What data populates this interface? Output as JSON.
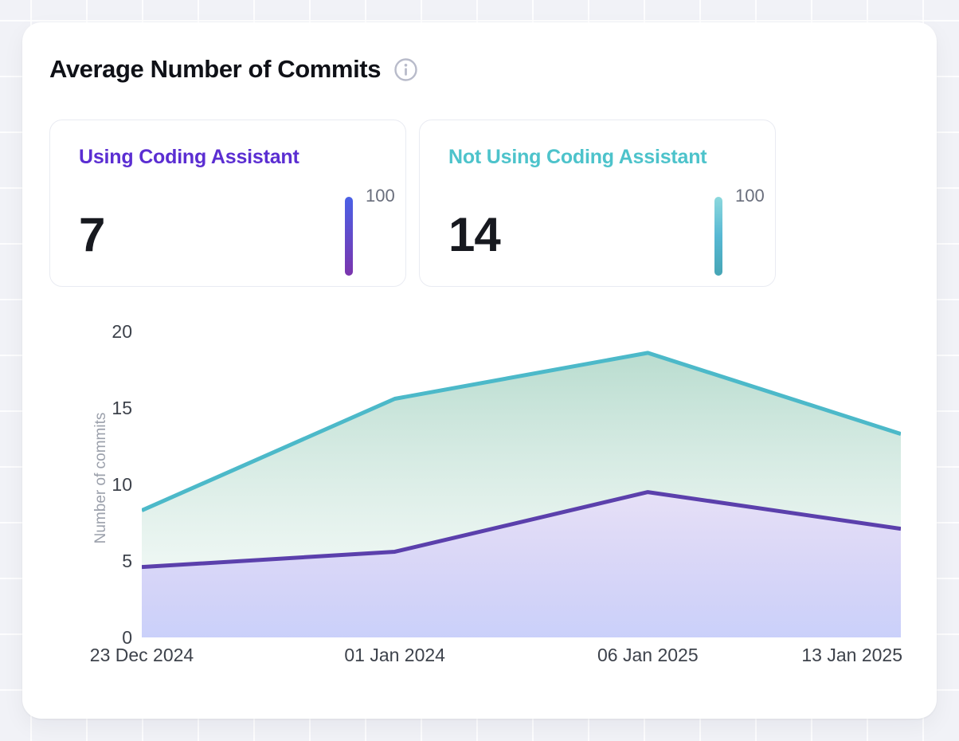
{
  "header": {
    "title": "Average Number of Commits",
    "info_icon": "info-circle"
  },
  "stat_cards": [
    {
      "label": "Using Coding Assistant",
      "value": "7",
      "gauge_label": "100",
      "accent": "#5b2ed2",
      "bar_gradient": [
        "#4a61e6",
        "#7b35ad"
      ]
    },
    {
      "label": "Not Using Coding Assistant",
      "value": "14",
      "gauge_label": "100",
      "accent": "#4dc3cb",
      "bar_gradient": [
        "#8cd8dd",
        "#57b8d3",
        "#46a5b5"
      ]
    }
  ],
  "chart_data": {
    "type": "area",
    "x": [
      "23 Dec 2024",
      "01 Jan 2024",
      "06 Jan 2025",
      "13 Jan 2025"
    ],
    "series": [
      {
        "name": "Not Using Coding Assistant",
        "values": [
          8.3,
          15.6,
          18.6,
          13.3
        ],
        "line_color": "#4cb9c9",
        "fill_top": "rgba(116,186,160,0.50)",
        "fill_bottom": "rgba(235,246,242,0.30)"
      },
      {
        "name": "Using Coding Assistant",
        "values": [
          4.6,
          5.6,
          9.5,
          7.1
        ],
        "line_color": "#5b40ac",
        "fill_top": "rgba(142,116,220,0.22)",
        "fill_bottom": "rgba(138,152,244,0.45)"
      }
    ],
    "ylabel": "Number of commits",
    "yticks": [
      0,
      5,
      10,
      15,
      20
    ],
    "ylim": [
      0,
      20
    ],
    "grid": false,
    "legend": "none"
  }
}
